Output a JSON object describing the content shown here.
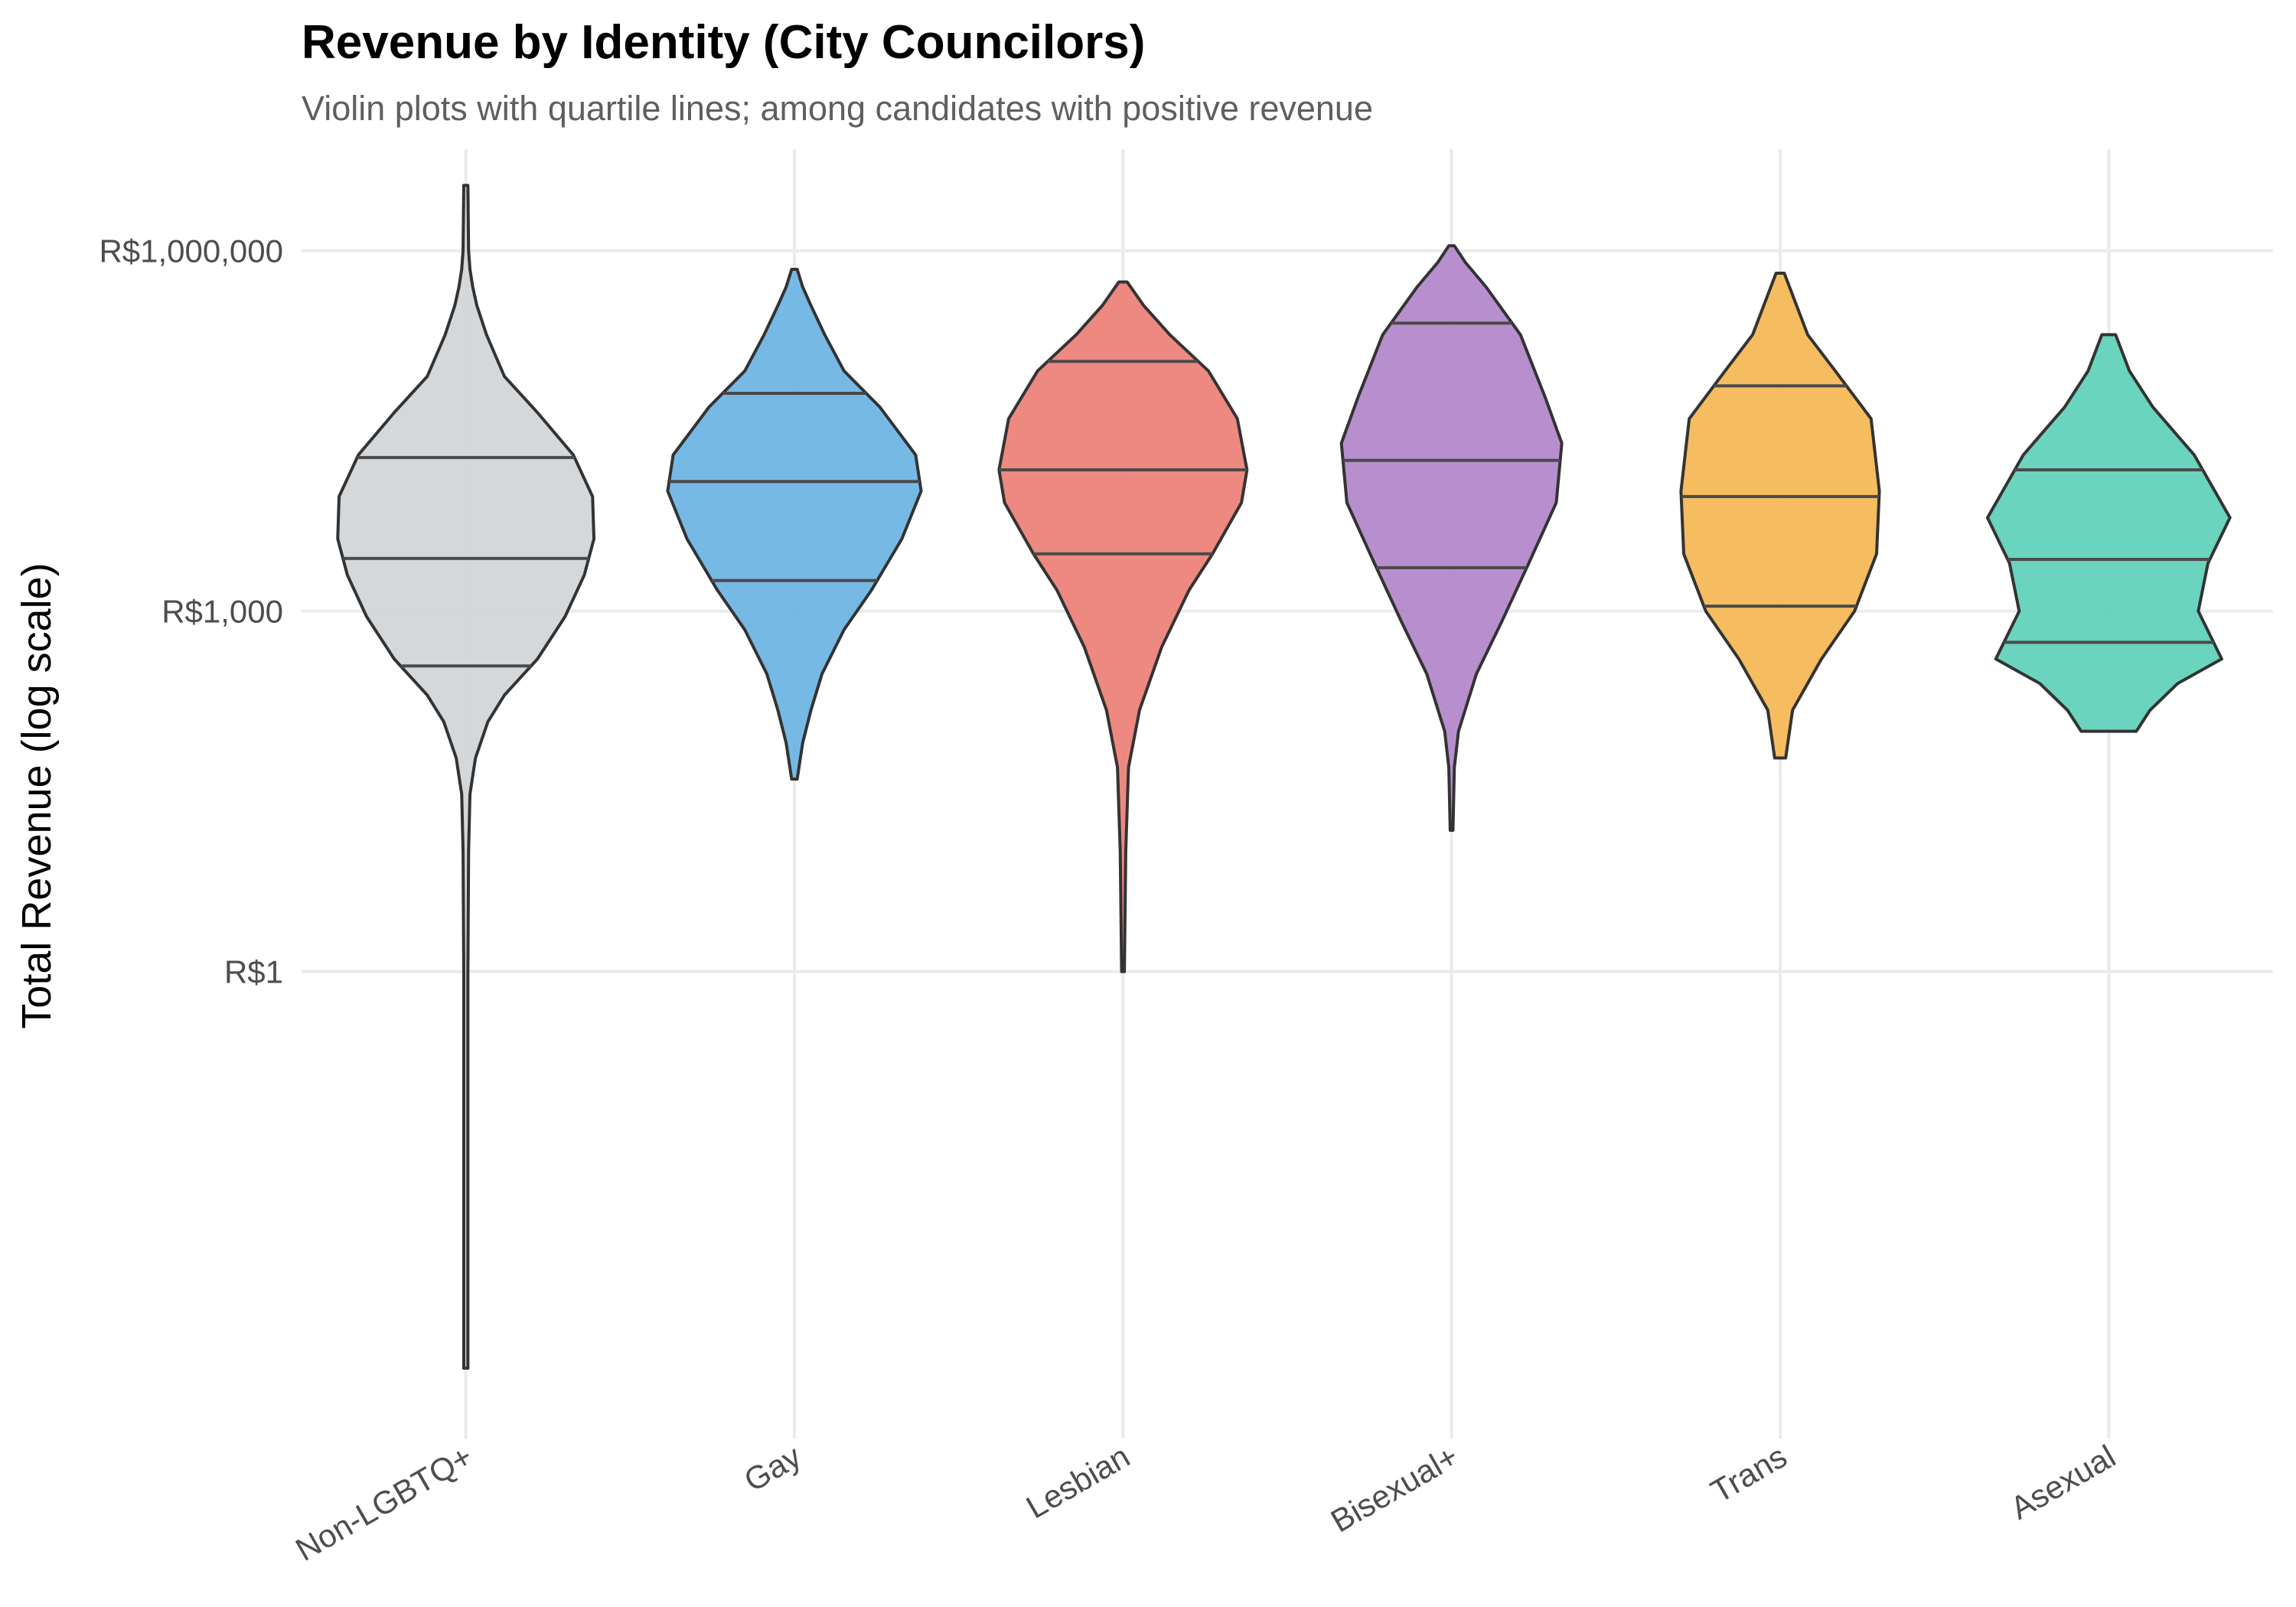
{
  "chart_data": {
    "type": "violin",
    "title": "Revenue by Identity (City Councilors)",
    "subtitle": "Violin plots with quartile lines; among candidates with positive revenue",
    "xlabel": "",
    "ylabel": "Total Revenue (log scale)",
    "y_scale": "log10",
    "ylim": [
      0.00015,
      7000000
    ],
    "y_ticks": [
      {
        "value": 1,
        "label": "R$1"
      },
      {
        "value": 1000,
        "label": "R$1,000"
      },
      {
        "value": 1000000,
        "label": "R$1,000,000"
      }
    ],
    "grid": true,
    "categories": [
      "Non-LGBTQ+",
      "Gay",
      "Lesbian",
      "Bisexual+",
      "Trans",
      "Asexual"
    ],
    "series": [
      {
        "name": "Non-LGBTQ+",
        "color": "#d1d5d8",
        "quartiles": [
          350,
          2750,
          19000
        ],
        "min": 0.0005,
        "max": 3500000,
        "density": [
          [
            0.0005,
            0.015
          ],
          [
            0.05,
            0.015
          ],
          [
            1,
            0.015
          ],
          [
            10,
            0.02
          ],
          [
            30,
            0.03
          ],
          [
            60,
            0.07
          ],
          [
            120,
            0.16
          ],
          [
            200,
            0.28
          ],
          [
            400,
            0.52
          ],
          [
            900,
            0.72
          ],
          [
            2000,
            0.86
          ],
          [
            4000,
            0.93
          ],
          [
            9000,
            0.92
          ],
          [
            20000,
            0.78
          ],
          [
            45000,
            0.52
          ],
          [
            90000,
            0.28
          ],
          [
            200000,
            0.15
          ],
          [
            350000,
            0.08
          ],
          [
            500000,
            0.05
          ],
          [
            700000,
            0.03
          ],
          [
            1000000,
            0.02
          ],
          [
            3500000,
            0.015
          ]
        ]
      },
      {
        "name": "Gay",
        "color": "#6bb3e3",
        "quartiles": [
          1800,
          12000,
          65000
        ],
        "min": 40,
        "max": 700000,
        "density": [
          [
            40,
            0.02
          ],
          [
            80,
            0.06
          ],
          [
            150,
            0.12
          ],
          [
            300,
            0.2
          ],
          [
            700,
            0.36
          ],
          [
            1500,
            0.56
          ],
          [
            4000,
            0.78
          ],
          [
            10000,
            0.92
          ],
          [
            20000,
            0.88
          ],
          [
            50000,
            0.62
          ],
          [
            100000,
            0.36
          ],
          [
            200000,
            0.22
          ],
          [
            350000,
            0.12
          ],
          [
            500000,
            0.06
          ],
          [
            700000,
            0.02
          ]
        ]
      },
      {
        "name": "Lesbian",
        "color": "#ec7f76",
        "quartiles": [
          3000,
          15000,
          120000
        ],
        "min": 1,
        "max": 550000,
        "density": [
          [
            1,
            0.01
          ],
          [
            10,
            0.02
          ],
          [
            50,
            0.04
          ],
          [
            150,
            0.12
          ],
          [
            500,
            0.28
          ],
          [
            1500,
            0.48
          ],
          [
            3000,
            0.65
          ],
          [
            8000,
            0.86
          ],
          [
            15000,
            0.9
          ],
          [
            40000,
            0.83
          ],
          [
            100000,
            0.62
          ],
          [
            200000,
            0.34
          ],
          [
            350000,
            0.15
          ],
          [
            550000,
            0.03
          ]
        ]
      },
      {
        "name": "Bisexual+",
        "color": "#b286ca",
        "quartiles": [
          2300,
          18000,
          250000
        ],
        "min": 15,
        "max": 1100000,
        "density": [
          [
            15,
            0.01
          ],
          [
            50,
            0.02
          ],
          [
            100,
            0.05
          ],
          [
            300,
            0.18
          ],
          [
            800,
            0.36
          ],
          [
            2500,
            0.56
          ],
          [
            8000,
            0.76
          ],
          [
            25000,
            0.8
          ],
          [
            60000,
            0.68
          ],
          [
            200000,
            0.5
          ],
          [
            500000,
            0.25
          ],
          [
            800000,
            0.1
          ],
          [
            1100000,
            0.02
          ]
        ]
      },
      {
        "name": "Trans",
        "color": "#f4b653",
        "quartiles": [
          1100,
          9000,
          75000
        ],
        "min": 60,
        "max": 650000,
        "density": [
          [
            60,
            0.04
          ],
          [
            150,
            0.09
          ],
          [
            400,
            0.3
          ],
          [
            1000,
            0.54
          ],
          [
            3000,
            0.7
          ],
          [
            10000,
            0.72
          ],
          [
            40000,
            0.66
          ],
          [
            100000,
            0.4
          ],
          [
            200000,
            0.2
          ],
          [
            400000,
            0.1
          ],
          [
            650000,
            0.03
          ]
        ]
      },
      {
        "name": "Asexual",
        "color": "#5dd0b8",
        "quartiles": [
          550,
          2700,
          15000
        ],
        "min": 100,
        "max": 200000,
        "density": [
          [
            100,
            0.2
          ],
          [
            150,
            0.3
          ],
          [
            250,
            0.5
          ],
          [
            400,
            0.82
          ],
          [
            1000,
            0.65
          ],
          [
            2500,
            0.72
          ],
          [
            6000,
            0.88
          ],
          [
            20000,
            0.62
          ],
          [
            50000,
            0.32
          ],
          [
            100000,
            0.15
          ],
          [
            200000,
            0.05
          ]
        ]
      }
    ]
  }
}
